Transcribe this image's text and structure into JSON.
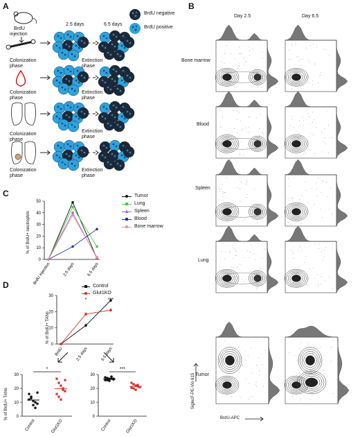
{
  "panels": {
    "a": "A",
    "b": "B",
    "c": "C",
    "d": "D"
  },
  "panel_a": {
    "injection_label_1": "BrdU",
    "injection_label_2": "injection",
    "day1": "2.5 days",
    "day2": "6.5 days",
    "legend_negative": "BrdU negative",
    "legend_positive": "BrdU positive",
    "colonization_1": "Colonization",
    "colonization_2": "phase",
    "extinction_1": "Extinction",
    "extinction_2": "phase",
    "rows": [
      "bone",
      "blood",
      "lung",
      "tumor-lung"
    ],
    "colors": {
      "negative": "#1a2a3a",
      "positive": "#2ea3e0"
    }
  },
  "panel_b": {
    "day1": "Day 2.5",
    "day2": "Day 6.5",
    "rows": [
      "Bone marrow",
      "Blood",
      "Spleen",
      "Lung",
      "Tumor"
    ],
    "xlabel": "BrdU-APC",
    "ylabel": "SiglecF-PE-Vio 615"
  },
  "chart_data": [
    {
      "type": "line",
      "panel": "C",
      "ylabel": "% of BrdU+ neutrophils",
      "categories": [
        "BrdU injection",
        "2.5 days",
        "6.5 days"
      ],
      "ylim": [
        0,
        50
      ],
      "yticks": [
        0,
        10,
        20,
        30,
        40,
        50
      ],
      "series": [
        {
          "name": "Tumor",
          "color": "#111111",
          "values": [
            0,
            49,
            1
          ]
        },
        {
          "name": "Lung",
          "color": "#3bd13b",
          "values": [
            0,
            45,
            11
          ]
        },
        {
          "name": "Spleen",
          "color": "#a060d0",
          "values": [
            0,
            40,
            1
          ]
        },
        {
          "name": "Blood",
          "color": "#2233aa",
          "values": [
            0,
            11,
            26
          ]
        },
        {
          "name": "Bone marrow",
          "color": "#f08a8a",
          "values": [
            0,
            38,
            2
          ]
        }
      ]
    },
    {
      "type": "line",
      "panel": "D-top",
      "ylabel": "% of BrdU+ TANs",
      "categories": [
        "BrdU",
        "2.5 days",
        "6.5 days"
      ],
      "ylim": [
        0,
        30
      ],
      "yticks": [
        0,
        10,
        20,
        30
      ],
      "significance": [
        "",
        "*",
        "***"
      ],
      "series": [
        {
          "name": "Control",
          "color": "#111111",
          "values": [
            0,
            11.5,
            27
          ]
        },
        {
          "name": "Glut1KO",
          "color": "#d93025",
          "values": [
            0,
            18.5,
            21
          ]
        }
      ]
    },
    {
      "type": "scatter",
      "panel": "D-bottom-left",
      "ylabel": "% of BrdU+ TANs",
      "categories": [
        "Control",
        "Glut1KO"
      ],
      "ylim": [
        0,
        30
      ],
      "yticks": [
        0,
        10,
        20,
        30
      ],
      "significance": "*",
      "series": [
        {
          "name": "Control",
          "color": "#111111",
          "values": [
            16,
            14,
            11,
            10,
            9,
            12,
            13,
            8,
            6,
            17
          ]
        },
        {
          "name": "Glut1KO",
          "color": "#d93025",
          "values": [
            27,
            24,
            22,
            19,
            18,
            16,
            14,
            12,
            20,
            26
          ]
        }
      ]
    },
    {
      "type": "scatter",
      "panel": "D-bottom-right",
      "ylim": [
        0,
        30
      ],
      "yticks": [
        0,
        10,
        20,
        30
      ],
      "categories": [
        "Control",
        "Glut1KO"
      ],
      "significance": "***",
      "series": [
        {
          "name": "Control",
          "color": "#111111",
          "values": [
            28,
            27.5,
            27,
            27,
            26.5,
            26,
            26,
            25.5,
            28.5,
            27
          ]
        },
        {
          "name": "Glut1KO",
          "color": "#d93025",
          "values": [
            24,
            23,
            22,
            21.5,
            21,
            20.5,
            20,
            19,
            22.5,
            21
          ]
        }
      ]
    }
  ]
}
